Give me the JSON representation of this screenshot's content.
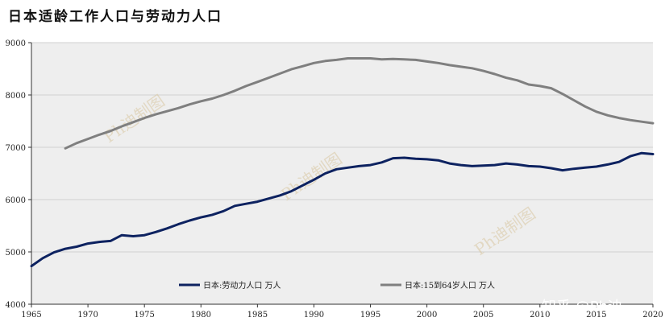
{
  "title": "日本适龄工作人口与劳动力人口",
  "watermarks": [
    "Ph迪制图",
    "Ph迪制图",
    "Ph迪制图"
  ],
  "credit": "知乎 @Ph迪",
  "colors": {
    "plot_bg": "#eeeeee",
    "labor": "#0d2260",
    "working_age": "#7f7f7f"
  },
  "chart_data": {
    "type": "line",
    "xlim": [
      1965,
      2020
    ],
    "ylim": [
      4000,
      9000
    ],
    "x_ticks": [
      1965,
      1970,
      1975,
      1980,
      1985,
      1990,
      1995,
      2000,
      2005,
      2010,
      2015,
      2020
    ],
    "y_ticks": [
      4000,
      5000,
      6000,
      7000,
      8000,
      9000
    ],
    "grid": "horizontal",
    "legend_position": "bottom-center",
    "series": [
      {
        "name": "日本:劳动力人口 万人",
        "color": "#0d2260",
        "x": [
          1965,
          1966,
          1967,
          1968,
          1969,
          1970,
          1971,
          1972,
          1973,
          1974,
          1975,
          1976,
          1977,
          1978,
          1979,
          1980,
          1981,
          1982,
          1983,
          1984,
          1985,
          1986,
          1987,
          1988,
          1989,
          1990,
          1991,
          1992,
          1993,
          1994,
          1995,
          1996,
          1997,
          1998,
          1999,
          2000,
          2001,
          2002,
          2003,
          2004,
          2005,
          2006,
          2007,
          2008,
          2009,
          2010,
          2011,
          2012,
          2013,
          2014,
          2015,
          2016,
          2017,
          2018,
          2019,
          2020
        ],
        "values": [
          4730,
          4880,
          4990,
          5060,
          5100,
          5160,
          5190,
          5210,
          5320,
          5300,
          5320,
          5380,
          5450,
          5530,
          5600,
          5660,
          5710,
          5780,
          5880,
          5920,
          5960,
          6020,
          6080,
          6160,
          6270,
          6380,
          6500,
          6580,
          6610,
          6640,
          6660,
          6710,
          6790,
          6800,
          6780,
          6770,
          6750,
          6690,
          6660,
          6640,
          6650,
          6660,
          6690,
          6670,
          6640,
          6630,
          6600,
          6560,
          6590,
          6610,
          6630,
          6670,
          6720,
          6830,
          6890,
          6870
        ]
      },
      {
        "name": "日本:15到64岁人口 万人",
        "color": "#7f7f7f",
        "x": [
          1968,
          1969,
          1970,
          1971,
          1972,
          1973,
          1974,
          1975,
          1976,
          1977,
          1978,
          1979,
          1980,
          1981,
          1982,
          1983,
          1984,
          1985,
          1986,
          1987,
          1988,
          1989,
          1990,
          1991,
          1992,
          1993,
          1994,
          1995,
          1996,
          1997,
          1998,
          1999,
          2000,
          2001,
          2002,
          2003,
          2004,
          2005,
          2006,
          2007,
          2008,
          2009,
          2010,
          2011,
          2012,
          2013,
          2014,
          2015,
          2016,
          2017,
          2018,
          2019,
          2020
        ],
        "values": [
          6980,
          7080,
          7160,
          7240,
          7310,
          7400,
          7480,
          7560,
          7630,
          7690,
          7750,
          7820,
          7880,
          7930,
          8000,
          8080,
          8170,
          8250,
          8330,
          8410,
          8490,
          8550,
          8610,
          8650,
          8670,
          8700,
          8700,
          8700,
          8680,
          8690,
          8680,
          8670,
          8640,
          8610,
          8570,
          8540,
          8510,
          8460,
          8400,
          8330,
          8280,
          8200,
          8170,
          8130,
          8020,
          7900,
          7780,
          7680,
          7610,
          7560,
          7520,
          7490,
          7460
        ]
      }
    ]
  }
}
